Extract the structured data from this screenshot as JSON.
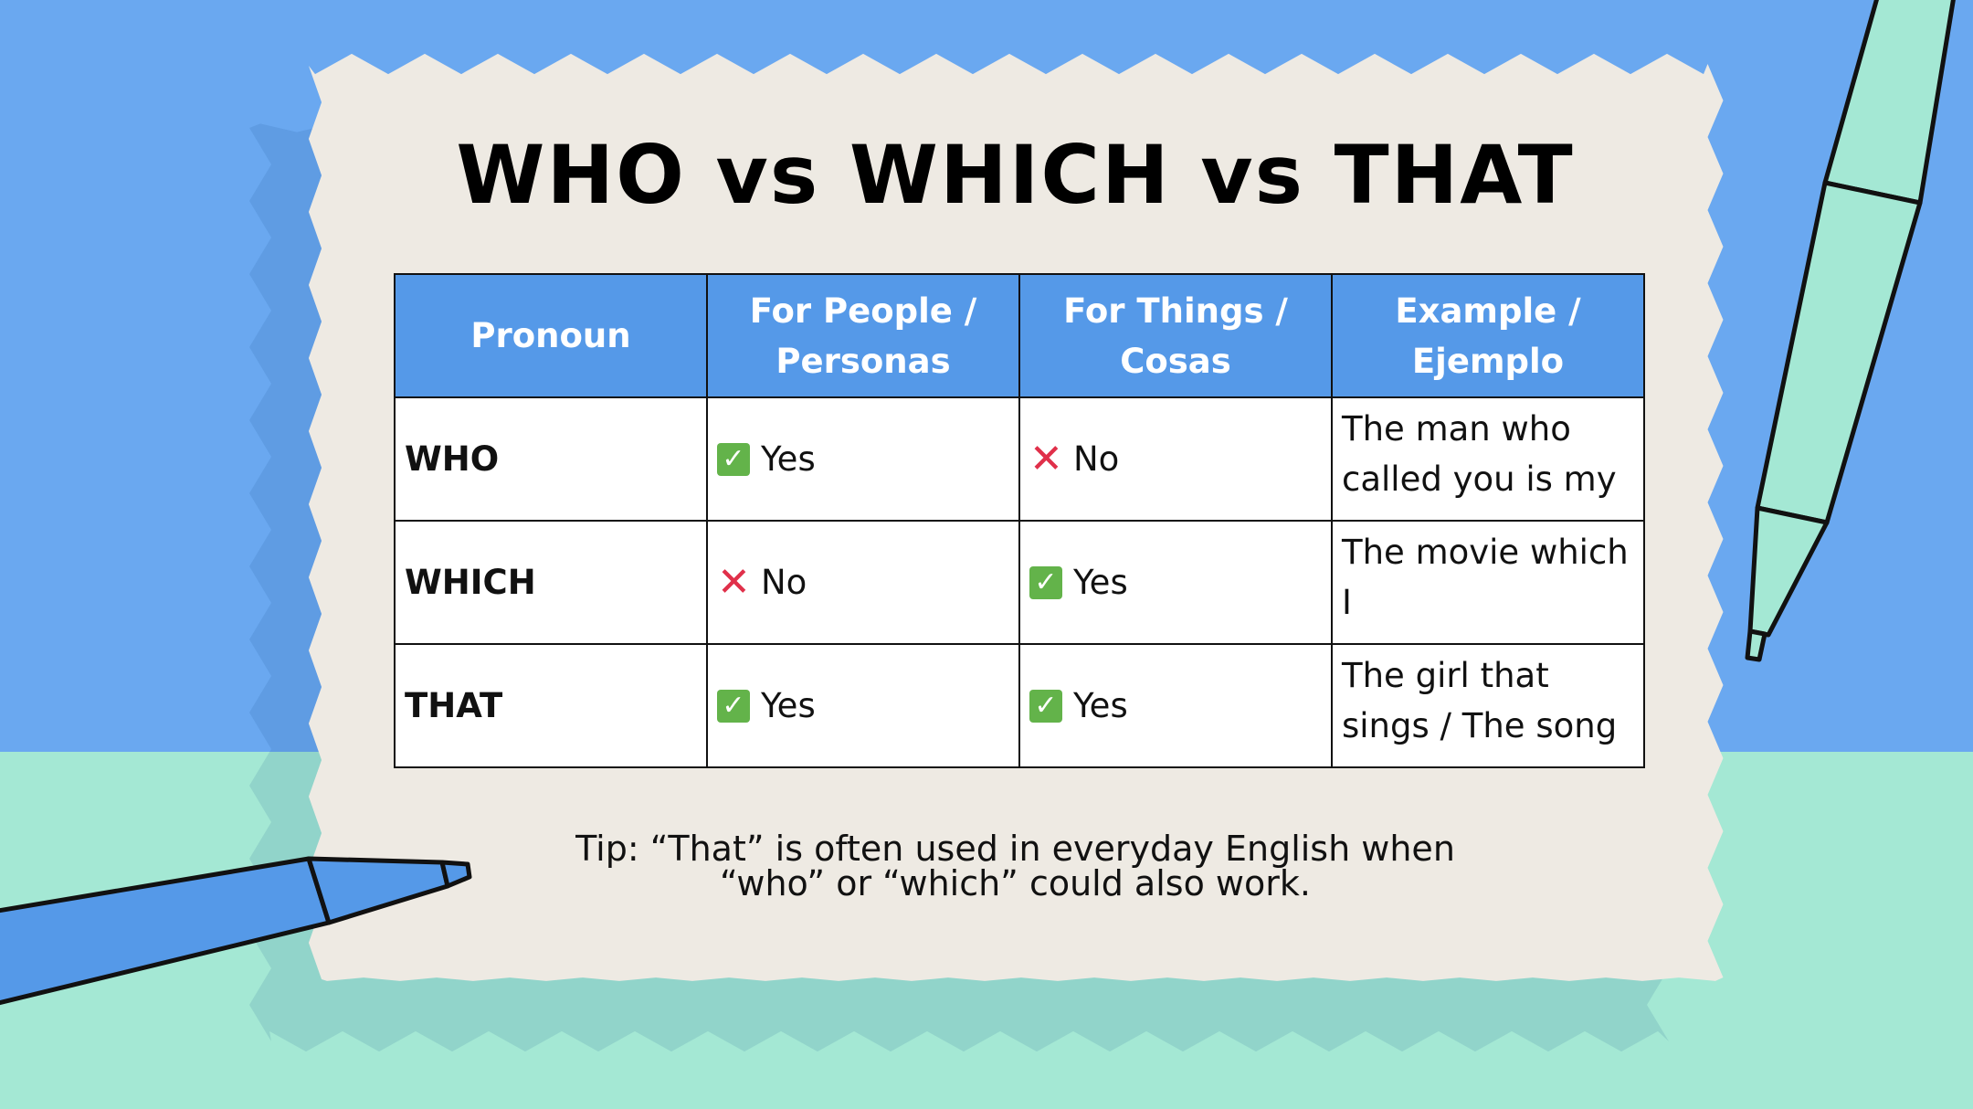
{
  "title": "WHO vs WHICH vs THAT",
  "colors": {
    "accent": "#5599e8",
    "yes": "#63b34a",
    "no": "#e0304a",
    "card": "#eeeae3"
  },
  "table": {
    "headers": [
      "Pronoun",
      "For People / Personas",
      "For Things / Cosas",
      "Example / Ejemplo"
    ],
    "rows": [
      {
        "pronoun": "WHO",
        "people": {
          "icon": "check-icon",
          "text": "Yes"
        },
        "things": {
          "icon": "cross-icon",
          "text": "No"
        },
        "example": "The man who called you is my"
      },
      {
        "pronoun": "WHICH",
        "people": {
          "icon": "cross-icon",
          "text": "No"
        },
        "things": {
          "icon": "check-icon",
          "text": "Yes"
        },
        "example": "The movie which I"
      },
      {
        "pronoun": "THAT",
        "people": {
          "icon": "check-icon",
          "text": "Yes"
        },
        "things": {
          "icon": "check-icon",
          "text": "Yes"
        },
        "example": "The girl that sings / The song"
      }
    ]
  },
  "tip": {
    "line1": "Tip: “That” is often used in everyday English when",
    "line2": "“who” or “which” could also work."
  }
}
